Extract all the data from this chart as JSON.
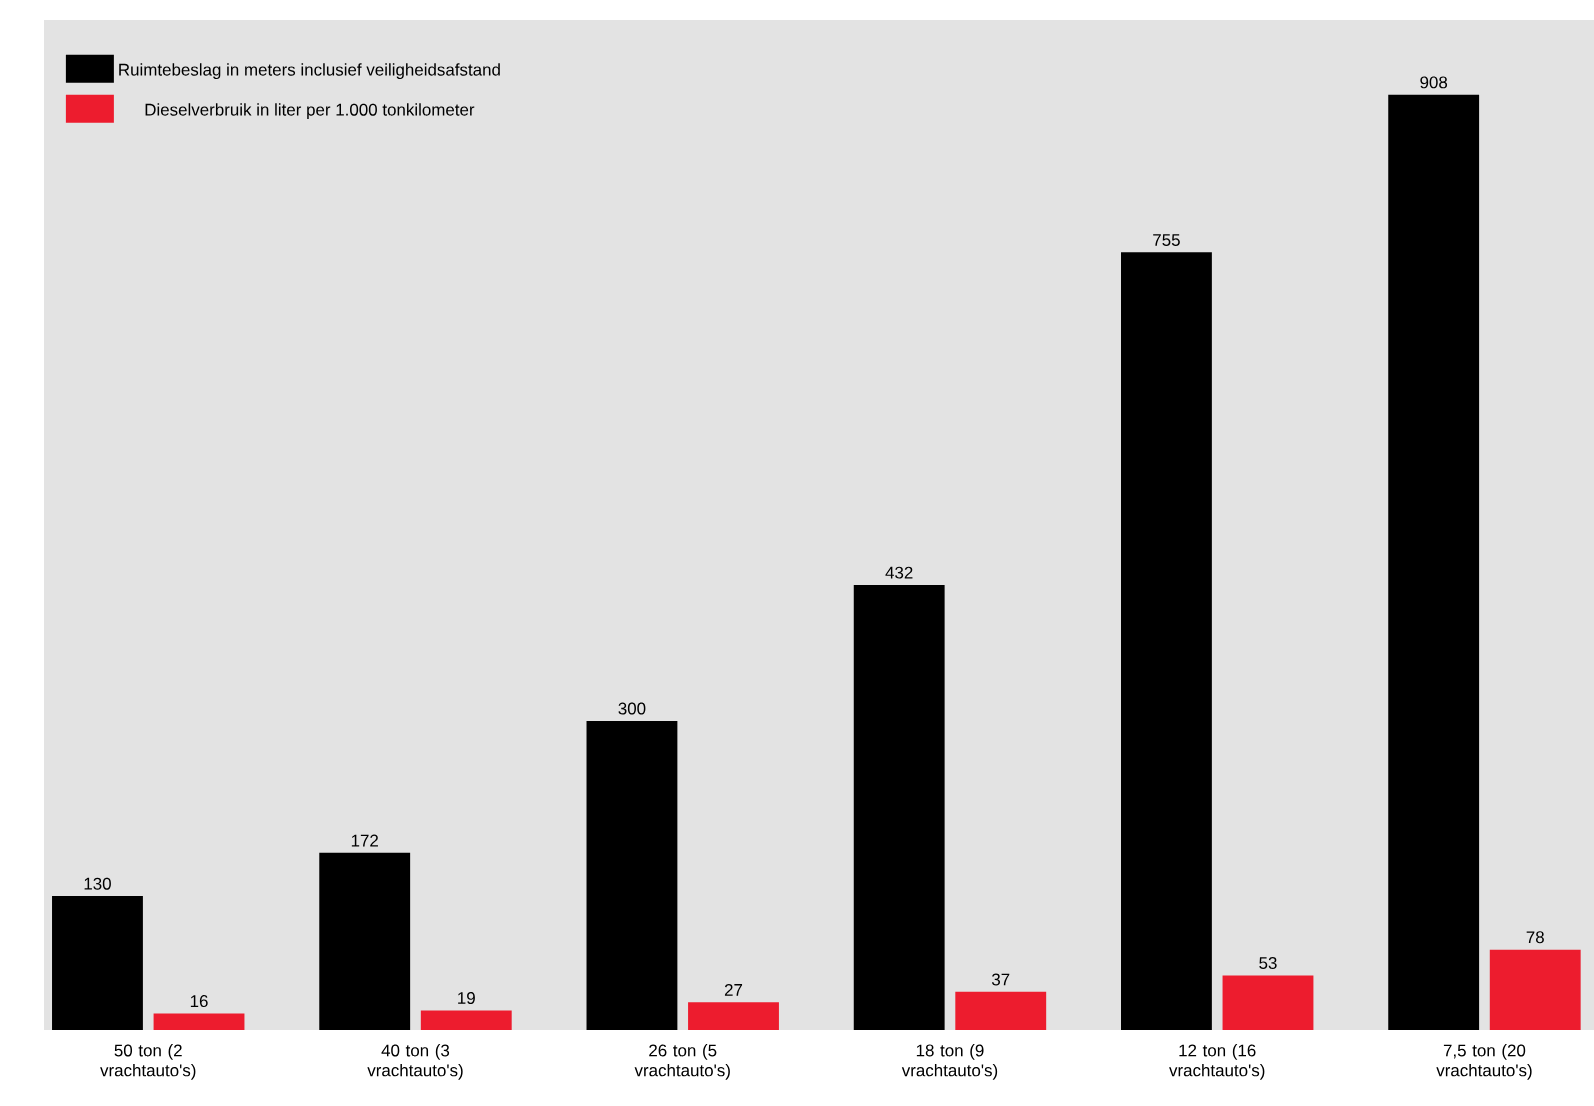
{
  "chart_data": {
    "type": "bar",
    "categories": [
      "50 ton (2 vrachtauto's)",
      "40 ton (3 vrachtauto's)",
      "26 ton (5 vrachtauto's)",
      "18 ton (9 vrachtauto's)",
      "12 ton (16 vrachtauto's)",
      "7,5 ton (20 vrachtauto's)"
    ],
    "series": [
      {
        "name": "Ruimtebeslag in meters inclusief veiligheidsafstand",
        "color": "#000000",
        "values": [
          130,
          172,
          300,
          432,
          755,
          908
        ]
      },
      {
        "name": "Dieselverbruik in liter per 1.000 tonkilometer",
        "color": "#ed1c2e",
        "values": [
          16,
          19,
          27,
          37,
          53,
          78
        ]
      }
    ],
    "data_labels": true,
    "legend": "top left",
    "grid": false
  }
}
